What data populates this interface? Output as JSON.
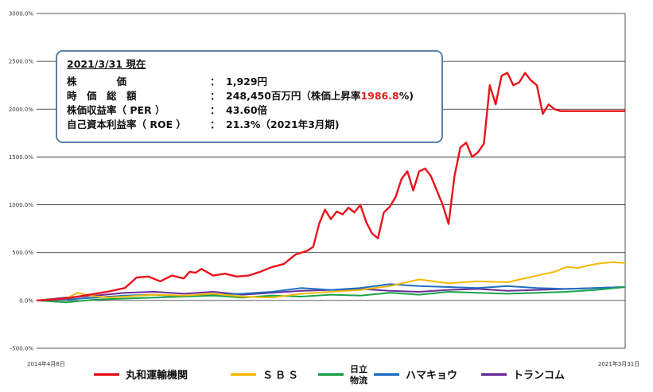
{
  "infobox": {
    "date": "2021/3/31 現在",
    "rows": [
      {
        "label": "株　　　　価",
        "sep": "：",
        "value": "1,929円"
      },
      {
        "label": "時　価　総　額",
        "sep": "：",
        "value_pre": "248,450百万円（株価上昇率",
        "value_hl": "1986.8",
        "value_post": "%)"
      },
      {
        "label": "株価収益率（ PER ）",
        "sep": "：",
        "value": "43.60倍"
      },
      {
        "label": "自己資本利益率（ ROE ）",
        "sep": "：",
        "value": "21.3%（2021年3月期)"
      }
    ]
  },
  "chart_data": {
    "type": "line",
    "x_start_label": "2014年4月8日",
    "x_end_label": "2021年3月31日",
    "ylim": [
      -500,
      3000
    ],
    "yticks": [
      -500,
      0,
      500,
      1000,
      1500,
      2000,
      2500,
      3000
    ],
    "ytick_labels": [
      "-500.0%",
      "0.0%",
      "500.0%",
      "1000.0%",
      "1500.0%",
      "2000.0%",
      "2500.0%",
      "3000.0%"
    ],
    "grid": true,
    "legend_position": "bottom",
    "series": [
      {
        "name": "丸和運輸機関",
        "color": "#e8141b",
        "x": [
          0,
          3,
          6,
          9,
          12,
          15,
          17,
          19,
          21,
          23,
          25,
          26,
          27,
          28,
          30,
          32,
          34,
          36,
          38,
          40,
          42,
          44,
          46,
          47,
          48,
          49,
          50,
          51,
          52,
          53,
          54,
          55,
          56,
          57,
          58,
          59,
          60,
          61,
          62,
          63,
          64,
          65,
          66,
          67,
          68,
          69,
          70,
          71,
          72,
          73,
          74,
          75,
          76,
          77,
          78,
          79,
          80,
          81,
          82,
          83,
          84,
          85,
          86,
          87,
          88,
          89,
          90,
          91,
          92,
          93,
          94,
          95,
          96,
          97,
          98,
          99,
          100
        ],
        "values": [
          0,
          10,
          30,
          60,
          90,
          130,
          240,
          250,
          200,
          260,
          230,
          300,
          290,
          330,
          260,
          280,
          250,
          260,
          300,
          350,
          380,
          480,
          520,
          560,
          800,
          950,
          850,
          930,
          900,
          970,
          920,
          1000,
          820,
          700,
          650,
          920,
          980,
          1080,
          1270,
          1350,
          1150,
          1350,
          1380,
          1300,
          1150,
          1000,
          800,
          1300,
          1600,
          1650,
          1500,
          1550,
          1640,
          2250,
          2050,
          2350,
          2380,
          2250,
          2280,
          2380,
          2300,
          2250,
          1950,
          2050,
          2000,
          1980,
          1980,
          1980,
          1980,
          1980,
          1980,
          1980,
          1980,
          1980,
          1980,
          1980,
          1980
        ]
      },
      {
        "name": "ＳＢＳ",
        "color": "#f5b800",
        "x": [
          0,
          5,
          7,
          9,
          12,
          15,
          20,
          25,
          30,
          35,
          40,
          45,
          50,
          55,
          60,
          65,
          70,
          75,
          80,
          85,
          88,
          90,
          92,
          94,
          96,
          98,
          100
        ],
        "values": [
          0,
          20,
          80,
          50,
          30,
          40,
          60,
          50,
          70,
          40,
          30,
          70,
          90,
          110,
          150,
          220,
          180,
          200,
          190,
          260,
          300,
          350,
          340,
          370,
          390,
          400,
          390
        ]
      },
      {
        "name": "日立物流",
        "color": "#1aa34a",
        "x": [
          0,
          5,
          10,
          15,
          20,
          25,
          30,
          35,
          40,
          45,
          50,
          55,
          60,
          65,
          70,
          75,
          80,
          85,
          90,
          95,
          100
        ],
        "values": [
          0,
          -20,
          10,
          20,
          30,
          40,
          50,
          30,
          50,
          40,
          60,
          50,
          80,
          60,
          90,
          80,
          70,
          80,
          90,
          110,
          140
        ]
      },
      {
        "name": "ハマキョウ",
        "color": "#1f6fc2",
        "x": [
          0,
          5,
          10,
          15,
          20,
          25,
          30,
          35,
          40,
          45,
          50,
          55,
          60,
          65,
          70,
          75,
          80,
          85,
          90,
          95,
          100
        ],
        "values": [
          0,
          10,
          30,
          50,
          60,
          40,
          60,
          70,
          90,
          130,
          110,
          130,
          170,
          150,
          140,
          130,
          150,
          130,
          120,
          130,
          140
        ]
      },
      {
        "name": "トランコム",
        "color": "#6b2d9a",
        "x": [
          0,
          5,
          10,
          15,
          20,
          25,
          30,
          35,
          40,
          45,
          50,
          55,
          60,
          65,
          70,
          75,
          80,
          85,
          90,
          95,
          100
        ],
        "values": [
          0,
          30,
          50,
          80,
          90,
          70,
          90,
          60,
          80,
          100,
          110,
          120,
          100,
          90,
          110,
          120,
          100,
          110,
          120,
          130,
          140
        ]
      }
    ]
  }
}
